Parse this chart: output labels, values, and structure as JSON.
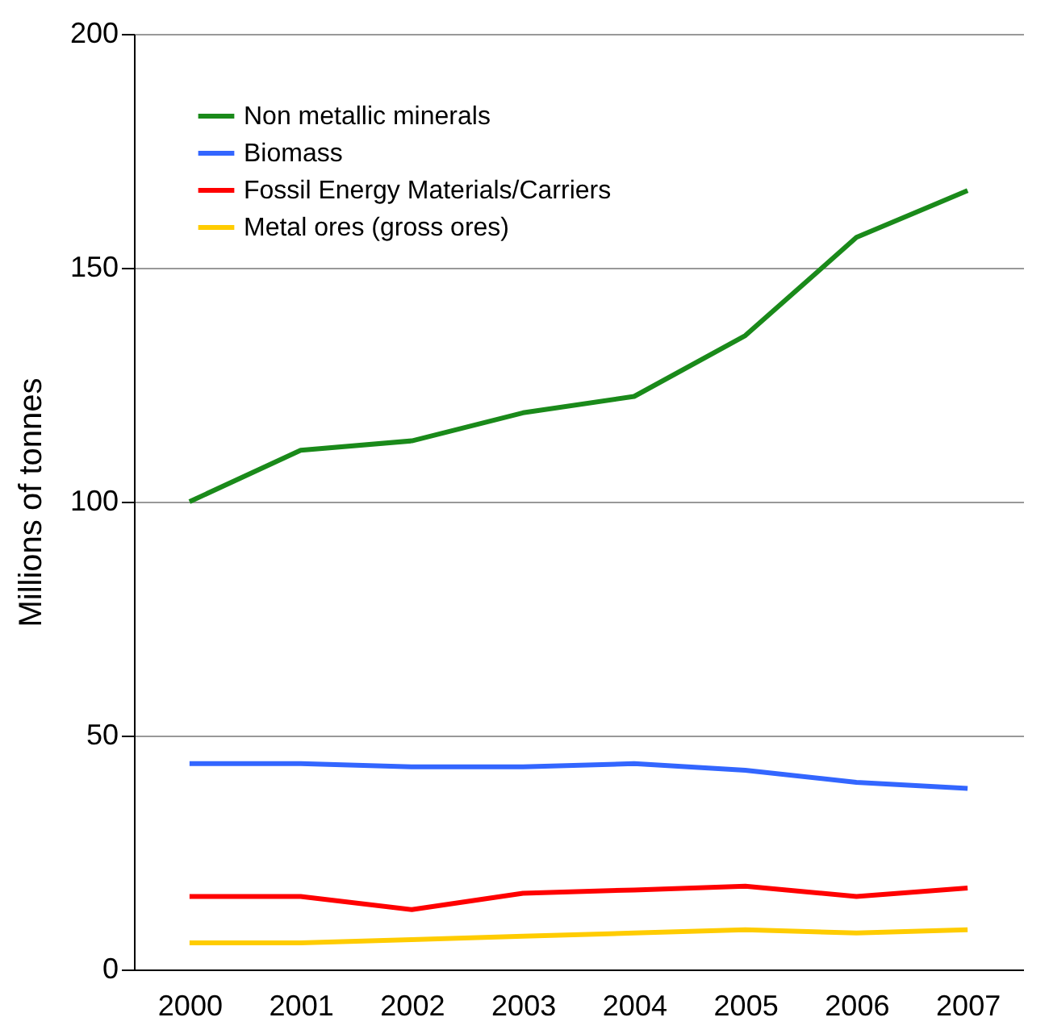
{
  "chart_data": {
    "type": "line",
    "ylabel": "Millions of tonnes",
    "categories": [
      "2000",
      "2001",
      "2002",
      "2003",
      "2004",
      "2005",
      "2006",
      "2007"
    ],
    "series": [
      {
        "name": "Non metallic minerals",
        "color": "#1a8a1a",
        "values": [
          100,
          111,
          113,
          119,
          122.5,
          135.5,
          156.5,
          166.5
        ]
      },
      {
        "name": "Biomass",
        "color": "#3366ff",
        "values": [
          44,
          44,
          43.3,
          43.3,
          44,
          42.6,
          40,
          38.7
        ]
      },
      {
        "name": "Fossil Energy Materials/Carriers",
        "color": "#ff0000",
        "values": [
          15.6,
          15.6,
          12.8,
          16.3,
          17,
          17.8,
          15.6,
          17.4
        ]
      },
      {
        "name": "Metal ores (gross ores)",
        "color": "#ffcc00",
        "values": [
          5.7,
          5.7,
          6.4,
          7.1,
          7.8,
          8.5,
          7.8,
          8.5
        ]
      }
    ],
    "ylim": [
      0,
      200
    ],
    "yticks": [
      0,
      50,
      100,
      150,
      200
    ],
    "grid": "y",
    "legend": "top left",
    "marker": "none",
    "line_style": "solid"
  }
}
